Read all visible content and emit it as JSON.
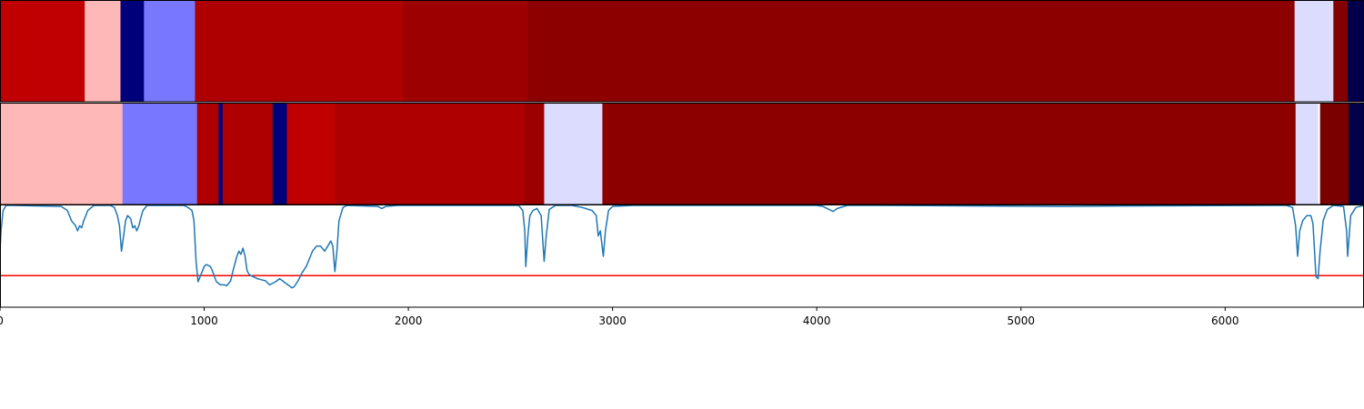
{
  "chart_data": [
    {
      "type": "heatmap",
      "x_range": [
        0,
        6680
      ],
      "segments": [
        {
          "start": 0,
          "end": 415,
          "color": "#c00000"
        },
        {
          "start": 415,
          "end": 590,
          "color": "#ffb8b8"
        },
        {
          "start": 590,
          "end": 705,
          "color": "#00007a"
        },
        {
          "start": 705,
          "end": 955,
          "color": "#7878ff"
        },
        {
          "start": 955,
          "end": 1975,
          "color": "#ae0000"
        },
        {
          "start": 1975,
          "end": 2585,
          "color": "#9c0000"
        },
        {
          "start": 2585,
          "end": 6340,
          "color": "#8c0000"
        },
        {
          "start": 6340,
          "end": 6530,
          "color": "#dcdcff"
        },
        {
          "start": 6530,
          "end": 6600,
          "color": "#820000"
        },
        {
          "start": 6600,
          "end": 6680,
          "color": "#00004a"
        }
      ]
    },
    {
      "type": "heatmap",
      "x_range": [
        0,
        6680
      ],
      "segments": [
        {
          "start": 0,
          "end": 600,
          "color": "#ffb8b8"
        },
        {
          "start": 600,
          "end": 965,
          "color": "#7878ff"
        },
        {
          "start": 965,
          "end": 1070,
          "color": "#ae0000"
        },
        {
          "start": 1070,
          "end": 1090,
          "color": "#00007a"
        },
        {
          "start": 1090,
          "end": 1335,
          "color": "#ae0000"
        },
        {
          "start": 1335,
          "end": 1405,
          "color": "#00007a"
        },
        {
          "start": 1405,
          "end": 1640,
          "color": "#c00000"
        },
        {
          "start": 1640,
          "end": 2565,
          "color": "#ae0000"
        },
        {
          "start": 2565,
          "end": 2665,
          "color": "#9c0000"
        },
        {
          "start": 2665,
          "end": 2950,
          "color": "#dcdcff"
        },
        {
          "start": 2950,
          "end": 6345,
          "color": "#8c0000"
        },
        {
          "start": 6345,
          "end": 6455,
          "color": "#dcdcff"
        },
        {
          "start": 6455,
          "end": 6465,
          "color": "#ffffff"
        },
        {
          "start": 6465,
          "end": 6605,
          "color": "#7a0000"
        },
        {
          "start": 6605,
          "end": 6680,
          "color": "#00004a"
        }
      ]
    },
    {
      "type": "line",
      "x_range": [
        0,
        6680
      ],
      "ylim": [
        0,
        1
      ],
      "xticks": [
        0,
        1000,
        2000,
        3000,
        4000,
        5000,
        6000
      ],
      "xtick_labels": [
        "0",
        "1000",
        "2000",
        "3000",
        "4000",
        "5000",
        "6000"
      ],
      "threshold": {
        "y": 0.31,
        "color": "#ff0000"
      },
      "series": [
        {
          "color": "#1f77b4",
          "points": [
            [
              0,
              0.55
            ],
            [
              5,
              0.75
            ],
            [
              15,
              0.95
            ],
            [
              30,
              1.0
            ],
            [
              60,
              1.0
            ],
            [
              300,
              0.99
            ],
            [
              330,
              0.95
            ],
            [
              350,
              0.85
            ],
            [
              370,
              0.8
            ],
            [
              380,
              0.75
            ],
            [
              390,
              0.8
            ],
            [
              400,
              0.78
            ],
            [
              410,
              0.85
            ],
            [
              430,
              0.95
            ],
            [
              460,
              1.0
            ],
            [
              540,
              1.0
            ],
            [
              560,
              0.98
            ],
            [
              575,
              0.9
            ],
            [
              585,
              0.8
            ],
            [
              595,
              0.55
            ],
            [
              605,
              0.7
            ],
            [
              615,
              0.85
            ],
            [
              625,
              0.9
            ],
            [
              640,
              0.87
            ],
            [
              650,
              0.78
            ],
            [
              660,
              0.8
            ],
            [
              670,
              0.75
            ],
            [
              680,
              0.8
            ],
            [
              690,
              0.88
            ],
            [
              700,
              0.95
            ],
            [
              720,
              1.0
            ],
            [
              900,
              1.0
            ],
            [
              920,
              0.98
            ],
            [
              940,
              0.95
            ],
            [
              950,
              0.85
            ],
            [
              960,
              0.45
            ],
            [
              970,
              0.25
            ],
            [
              980,
              0.3
            ],
            [
              990,
              0.35
            ],
            [
              1000,
              0.4
            ],
            [
              1010,
              0.42
            ],
            [
              1020,
              0.41
            ],
            [
              1030,
              0.4
            ],
            [
              1040,
              0.36
            ],
            [
              1050,
              0.3
            ],
            [
              1060,
              0.25
            ],
            [
              1080,
              0.22
            ],
            [
              1100,
              0.22
            ],
            [
              1110,
              0.21
            ],
            [
              1130,
              0.26
            ],
            [
              1140,
              0.35
            ],
            [
              1160,
              0.5
            ],
            [
              1170,
              0.55
            ],
            [
              1180,
              0.52
            ],
            [
              1190,
              0.58
            ],
            [
              1200,
              0.5
            ],
            [
              1210,
              0.36
            ],
            [
              1220,
              0.32
            ],
            [
              1240,
              0.3
            ],
            [
              1260,
              0.28
            ],
            [
              1280,
              0.27
            ],
            [
              1300,
              0.26
            ],
            [
              1320,
              0.22
            ],
            [
              1350,
              0.25
            ],
            [
              1370,
              0.28
            ],
            [
              1390,
              0.25
            ],
            [
              1410,
              0.22
            ],
            [
              1430,
              0.19
            ],
            [
              1440,
              0.2
            ],
            [
              1460,
              0.26
            ],
            [
              1480,
              0.34
            ],
            [
              1500,
              0.4
            ],
            [
              1510,
              0.45
            ],
            [
              1530,
              0.55
            ],
            [
              1550,
              0.6
            ],
            [
              1570,
              0.6
            ],
            [
              1590,
              0.55
            ],
            [
              1605,
              0.6
            ],
            [
              1620,
              0.65
            ],
            [
              1630,
              0.6
            ],
            [
              1640,
              0.35
            ],
            [
              1650,
              0.55
            ],
            [
              1660,
              0.85
            ],
            [
              1680,
              0.98
            ],
            [
              1700,
              1.0
            ],
            [
              1850,
              0.99
            ],
            [
              1870,
              0.97
            ],
            [
              1890,
              0.99
            ],
            [
              1950,
              1.0
            ],
            [
              2540,
              1.0
            ],
            [
              2560,
              0.95
            ],
            [
              2570,
              0.75
            ],
            [
              2575,
              0.4
            ],
            [
              2585,
              0.7
            ],
            [
              2595,
              0.9
            ],
            [
              2610,
              0.95
            ],
            [
              2630,
              0.97
            ],
            [
              2650,
              0.9
            ],
            [
              2660,
              0.6
            ],
            [
              2665,
              0.45
            ],
            [
              2675,
              0.7
            ],
            [
              2690,
              0.96
            ],
            [
              2720,
              1.0
            ],
            [
              2800,
              1.0
            ],
            [
              2850,
              0.98
            ],
            [
              2900,
              0.95
            ],
            [
              2920,
              0.9
            ],
            [
              2930,
              0.7
            ],
            [
              2940,
              0.75
            ],
            [
              2955,
              0.5
            ],
            [
              2965,
              0.75
            ],
            [
              2980,
              0.95
            ],
            [
              3000,
              0.99
            ],
            [
              3100,
              1.0
            ],
            [
              4000,
              1.0
            ],
            [
              4030,
              0.99
            ],
            [
              4060,
              0.96
            ],
            [
              4080,
              0.94
            ],
            [
              4100,
              0.97
            ],
            [
              4150,
              1.0
            ],
            [
              4300,
              1.0
            ],
            [
              4800,
              0.995
            ],
            [
              5200,
              0.99
            ],
            [
              5500,
              0.995
            ],
            [
              6300,
              1.0
            ],
            [
              6330,
              0.98
            ],
            [
              6345,
              0.8
            ],
            [
              6355,
              0.5
            ],
            [
              6365,
              0.75
            ],
            [
              6380,
              0.85
            ],
            [
              6400,
              0.9
            ],
            [
              6420,
              0.9
            ],
            [
              6430,
              0.82
            ],
            [
              6445,
              0.3
            ],
            [
              6455,
              0.28
            ],
            [
              6465,
              0.55
            ],
            [
              6480,
              0.85
            ],
            [
              6500,
              0.96
            ],
            [
              6530,
              1.0
            ],
            [
              6580,
              0.99
            ],
            [
              6595,
              0.75
            ],
            [
              6600,
              0.5
            ],
            [
              6615,
              0.9
            ],
            [
              6640,
              0.98
            ],
            [
              6680,
              1.0
            ]
          ]
        }
      ]
    }
  ]
}
